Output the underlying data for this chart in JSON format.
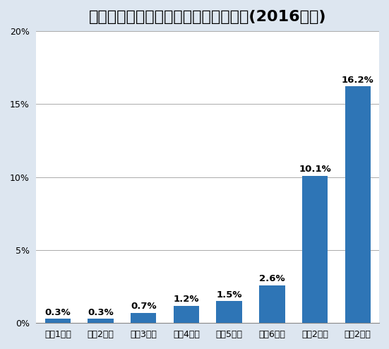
{
  "title": "自分用としてパソコンを持っているか(2016年度)",
  "categories": [
    "小学1年生",
    "小学2年生",
    "小学3年生",
    "小学4年生",
    "小学5年生",
    "小学6年生",
    "中学2年生",
    "高校2年生"
  ],
  "values": [
    0.3,
    0.3,
    0.7,
    1.2,
    1.5,
    2.6,
    10.1,
    16.2
  ],
  "labels": [
    "0.3%",
    "0.3%",
    "0.7%",
    "1.2%",
    "1.5%",
    "2.6%",
    "10.1%",
    "16.2%"
  ],
  "bar_color": "#2E75B6",
  "background_color": "#DDE6F0",
  "plot_bg_color": "#FFFFFF",
  "ylim": [
    0,
    20
  ],
  "yticks": [
    0,
    5,
    10,
    15,
    20
  ],
  "ytick_labels": [
    "0%",
    "5%",
    "10%",
    "15%",
    "20%"
  ],
  "title_fontsize": 16,
  "label_fontsize": 9.5,
  "tick_fontsize": 9
}
